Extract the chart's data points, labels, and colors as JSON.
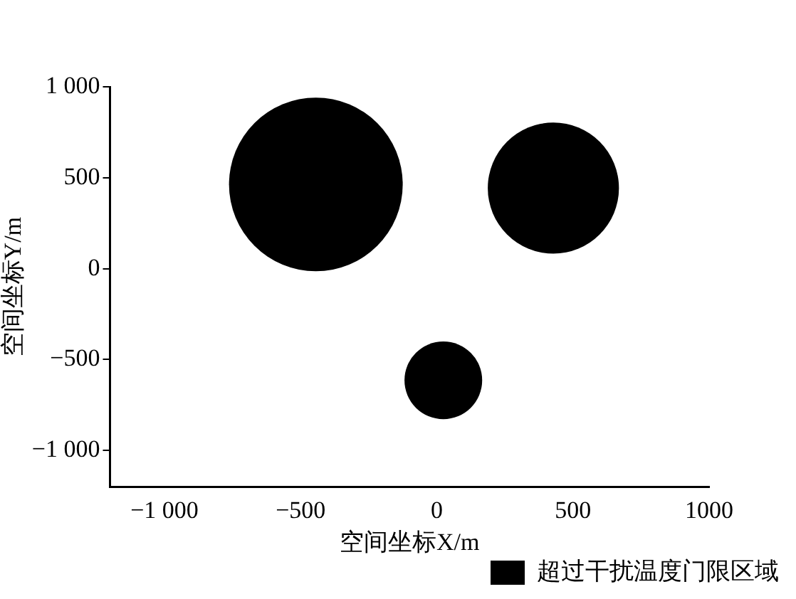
{
  "chart_data": {
    "type": "bubble",
    "xlabel": "空间坐标X/m",
    "ylabel": "空间坐标Y/m",
    "series": [
      {
        "name": "超过干扰温度门限区域",
        "color": "#000000",
        "x": [
          -444,
          428,
          24
        ],
        "values": [
          463,
          443,
          -614
        ],
        "sizes": [
          1,
          0.57,
          0.2
        ]
      }
    ],
    "xlim": [
      -1200,
      1000
    ],
    "ylim": [
      -1200,
      1000
    ],
    "xticks": [
      {
        "value": -1000,
        "label": "−1 000"
      },
      {
        "value": -500,
        "label": "−500"
      },
      0,
      500,
      1000
    ],
    "yticks": [
      {
        "value": -1000,
        "label": "−1 000"
      },
      {
        "value": -500,
        "label": "−500"
      },
      0,
      500,
      {
        "value": 1000,
        "label": "1 000"
      }
    ],
    "grid": false,
    "legend": "bottom right"
  }
}
